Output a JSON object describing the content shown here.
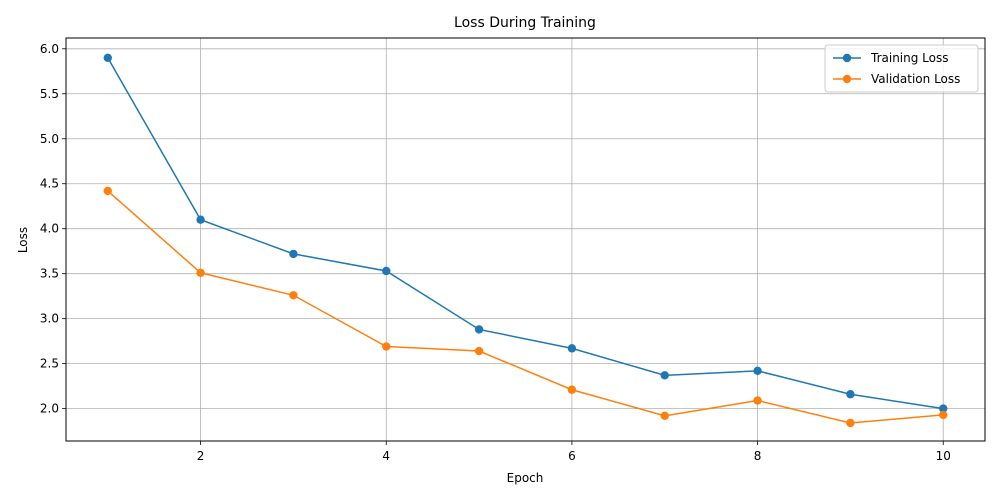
{
  "chart_data": {
    "type": "line",
    "title": "Loss During Training",
    "xlabel": "Epoch",
    "ylabel": "Loss",
    "x": [
      1,
      2,
      3,
      4,
      5,
      6,
      7,
      8,
      9,
      10
    ],
    "xlim": [
      0.55,
      10.45
    ],
    "ylim": [
      1.64,
      6.12
    ],
    "xticks": [
      2,
      4,
      6,
      8,
      10
    ],
    "yticks": [
      2.0,
      2.5,
      3.0,
      3.5,
      4.0,
      4.5,
      5.0,
      5.5,
      6.0
    ],
    "xtick_labels": [
      "2",
      "4",
      "6",
      "8",
      "10"
    ],
    "ytick_labels": [
      "2.0",
      "2.5",
      "3.0",
      "3.5",
      "4.0",
      "4.5",
      "5.0",
      "5.5",
      "6.0"
    ],
    "grid": true,
    "legend_position": "top-right",
    "series": [
      {
        "name": "Training Loss",
        "color": "#1f77b4",
        "marker": "circle",
        "values": [
          5.9,
          4.1,
          3.72,
          3.53,
          2.88,
          2.67,
          2.37,
          2.42,
          2.16,
          2.0
        ]
      },
      {
        "name": "Validation Loss",
        "color": "#ff7f0e",
        "marker": "circle",
        "values": [
          4.42,
          3.51,
          3.26,
          2.69,
          2.64,
          2.21,
          1.92,
          2.09,
          1.84,
          1.93
        ]
      }
    ]
  }
}
